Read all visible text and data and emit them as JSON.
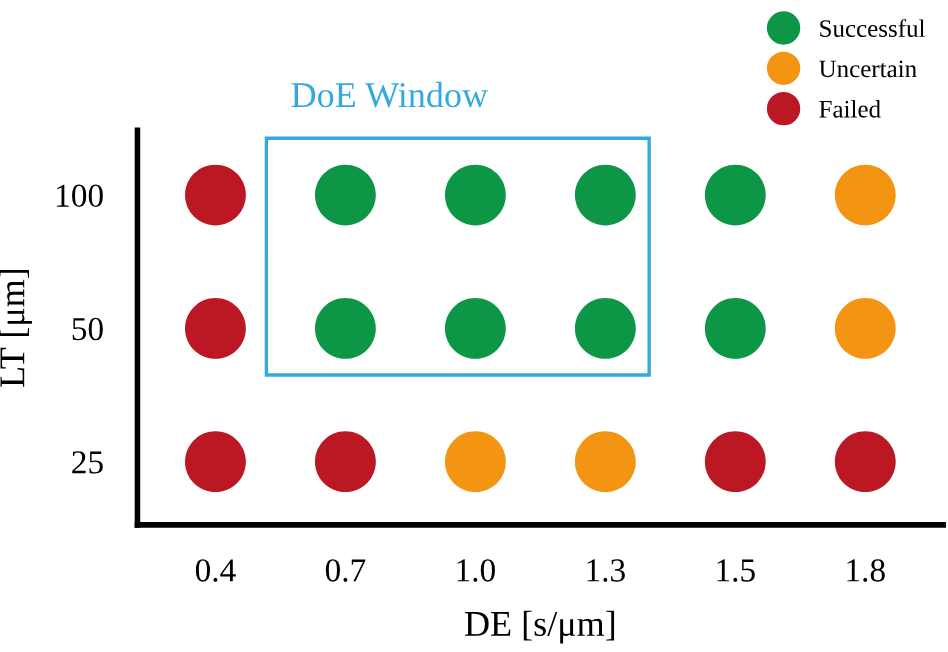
{
  "chart_data": {
    "type": "scatter",
    "xlabel": "DE [s/μm]",
    "ylabel": "LT [μm]",
    "categories": [
      "0.4",
      "0.7",
      "1.0",
      "1.3",
      "1.5",
      "1.8"
    ],
    "log": "y",
    "ylim": [
      18,
      140
    ],
    "yticks": [
      25,
      50,
      100
    ],
    "series": [
      {
        "name": "Successful",
        "color": "#0e9647",
        "x": [
          "0.7",
          "1.0",
          "1.3",
          "1.5",
          "0.7",
          "1.0",
          "1.3",
          "1.5"
        ],
        "values": [
          100,
          100,
          100,
          100,
          50,
          50,
          50,
          50
        ]
      },
      {
        "name": "Uncertain",
        "color": "#f39512",
        "x": [
          "1.8",
          "1.8",
          "1.0",
          "1.3"
        ],
        "values": [
          100,
          50,
          25,
          25
        ]
      },
      {
        "name": "Failed",
        "color": "#bb1824",
        "x": [
          "0.4",
          "0.4",
          "0.4",
          "0.7",
          "1.5",
          "1.8"
        ],
        "values": [
          100,
          50,
          25,
          25,
          25,
          25
        ]
      }
    ],
    "annotations": [
      "DoE Window"
    ],
    "marker": "circle",
    "grid": false,
    "legend": "top right"
  }
}
